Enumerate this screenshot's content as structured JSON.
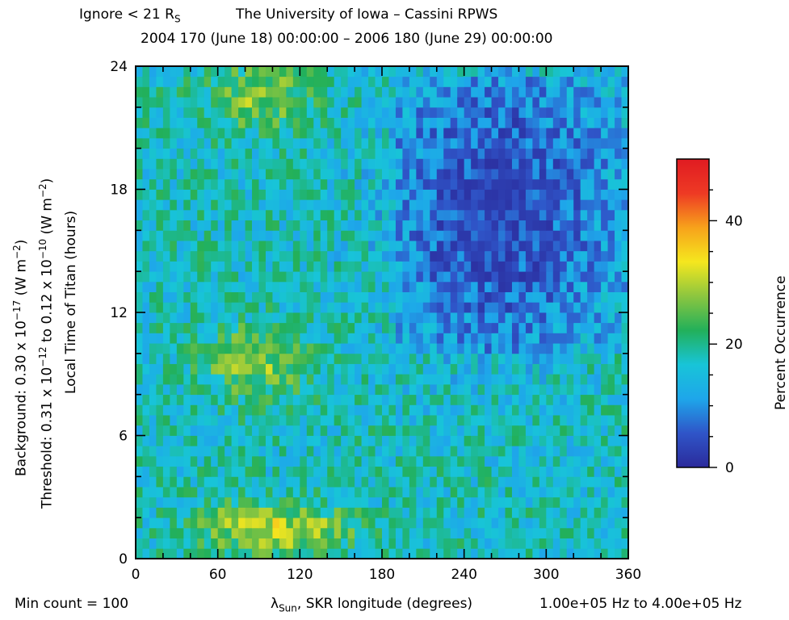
{
  "header": {
    "ignore_text": "Ignore < 21 R",
    "ignore_sub": "S",
    "institution": "The University of Iowa – Cassini RPWS",
    "date_range": "2004 170 (June 18) 00:00:00 – 2006 180 (June 29) 00:00:00"
  },
  "side_labels": {
    "background": {
      "a": "Background:  0.30 x 10",
      "sup1": "−17",
      "b": " (W m",
      "sup2": "−2",
      "c": ")"
    },
    "threshold": {
      "a": "Threshold:  0.31 x 10",
      "sup1": "−12",
      "b": " to  0.12 x 10",
      "sup2": "−10",
      "c": " (W m",
      "sup3": "−2",
      "d": ")"
    }
  },
  "footer": {
    "min_count": "Min count = 100",
    "freq_range": "1.00e+05 Hz to  4.00e+05 Hz"
  },
  "chart_data": {
    "type": "heatmap",
    "title": "The University of Iowa – Cassini RPWS",
    "subtitle": "2004 170 (June 18) 00:00:00 – 2006 180 (June 29) 00:00:00",
    "xlabel": "λSun, SKR longitude (degrees)",
    "xlabel_main": "λ",
    "xlabel_sub": "Sun",
    "xlabel_rest": ", SKR longitude (degrees)",
    "ylabel": "Local Time of Titan (hours)",
    "xlim": [
      0,
      360
    ],
    "ylim": [
      0,
      24
    ],
    "x_ticks": [
      "0",
      "60",
      "120",
      "180",
      "240",
      "300",
      "360"
    ],
    "y_ticks": [
      "0",
      "6",
      "12",
      "18",
      "24"
    ],
    "colorbar": {
      "label": "Percent Occurrence",
      "range": [
        0,
        50
      ],
      "ticks": [
        "0",
        "20",
        "40"
      ],
      "colors": [
        "#2b2a9b",
        "#2f55c8",
        "#1ea6ea",
        "#18c4d8",
        "#22b05a",
        "#8cc63f",
        "#f5e71e",
        "#f7a21b",
        "#ee3a24",
        "#e01b22"
      ]
    },
    "grid_resolution": {
      "lon_bin_deg": 5,
      "lt_bin_hours": 0.5
    },
    "description_of_values": "Percent occurrence per bin; high (30–50%) at longitudes 50–130° near LT 0–3 h, 8–11 h and 21–24 h; low (0–10%) at longitudes 190–340°, LT 11–23 h; moderate (10–25%) elsewhere."
  }
}
